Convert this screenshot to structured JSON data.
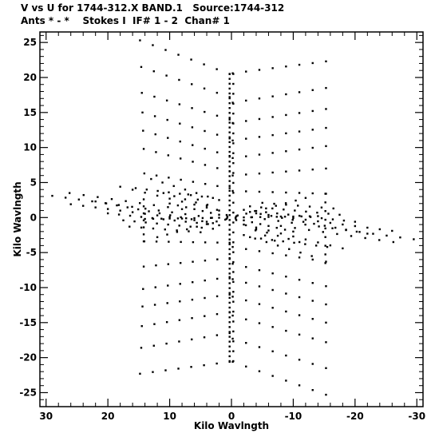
{
  "header": {
    "line1": "V vs U for 1744-312.X BAND.1   Source:1744-312",
    "line2": "Ants * - *    Stokes I  IF# 1 - 2  Chan# 1"
  },
  "chart_data": {
    "type": "scatter",
    "title": "V vs U for 1744-312.X BAND.1   Source:1744-312",
    "subtitle": "Ants * - *    Stokes I  IF# 1 - 2  Chan# 1",
    "xlabel": "Kilo Wavlngth",
    "ylabel": "Kilo Wavlngth",
    "xlim": [
      31,
      -31
    ],
    "ylim": [
      -27,
      26.5
    ],
    "x_reversed": true,
    "grid": false,
    "xticks": [
      30,
      20,
      10,
      0,
      -10,
      -20,
      -30
    ],
    "yticks": [
      25,
      20,
      15,
      10,
      5,
      0,
      -5,
      -10,
      -15,
      -20,
      -25
    ],
    "xtick_labels": [
      "30",
      "20",
      "10",
      "0",
      "-10",
      "-20",
      "-30"
    ],
    "ytick_labels": [
      "25",
      "20",
      "15",
      "10",
      "5",
      "0",
      "-5",
      "-10",
      "-15",
      "-20",
      "-25"
    ],
    "point_color": "#000000",
    "tracks": [
      {
        "from": [
          14.8,
          25.3
        ],
        "to": [
          0.3,
          20.5
        ],
        "n": 8
      },
      {
        "from": [
          14.6,
          21.5
        ],
        "to": [
          0.3,
          17.2
        ],
        "n": 8
      },
      {
        "from": [
          14.5,
          17.8
        ],
        "to": [
          0.3,
          14.0
        ],
        "n": 8
      },
      {
        "from": [
          14.4,
          15.0
        ],
        "to": [
          0.3,
          11.3
        ],
        "n": 8
      },
      {
        "from": [
          14.3,
          12.4
        ],
        "to": [
          0.3,
          8.8
        ],
        "n": 8
      },
      {
        "from": [
          14.2,
          9.8
        ],
        "to": [
          0.3,
          6.6
        ],
        "n": 8
      },
      {
        "from": [
          14.1,
          6.3
        ],
        "to": [
          0.3,
          4.2
        ],
        "n": 8
      },
      {
        "from": [
          -0.2,
          20.6
        ],
        "to": [
          -15.3,
          22.3
        ],
        "n": 8
      },
      {
        "from": [
          -0.2,
          16.4
        ],
        "to": [
          -15.3,
          18.5
        ],
        "n": 8
      },
      {
        "from": [
          -0.2,
          13.5
        ],
        "to": [
          -15.3,
          15.5
        ],
        "n": 8
      },
      {
        "from": [
          -0.2,
          11.0
        ],
        "to": [
          -15.3,
          12.8
        ],
        "n": 8
      },
      {
        "from": [
          -0.2,
          8.5
        ],
        "to": [
          -15.3,
          10.2
        ],
        "n": 8
      },
      {
        "from": [
          -0.2,
          6.0
        ],
        "to": [
          -15.3,
          7.0
        ],
        "n": 8
      },
      {
        "from": [
          -0.2,
          3.8
        ],
        "to": [
          -15.3,
          3.4
        ],
        "n": 8
      },
      {
        "from": [
          14.8,
          -22.3
        ],
        "to": [
          0.3,
          -20.6
        ],
        "n": 8
      },
      {
        "from": [
          14.6,
          -18.6
        ],
        "to": [
          0.3,
          -16.5
        ],
        "n": 8
      },
      {
        "from": [
          14.5,
          -15.5
        ],
        "to": [
          0.3,
          -13.5
        ],
        "n": 8
      },
      {
        "from": [
          14.4,
          -12.7
        ],
        "to": [
          0.3,
          -11.0
        ],
        "n": 8
      },
      {
        "from": [
          14.3,
          -10.2
        ],
        "to": [
          0.3,
          -8.5
        ],
        "n": 8
      },
      {
        "from": [
          14.2,
          -7.0
        ],
        "to": [
          0.3,
          -5.8
        ],
        "n": 8
      },
      {
        "from": [
          14.1,
          -3.4
        ],
        "to": [
          0.3,
          -3.6
        ],
        "n": 8
      },
      {
        "from": [
          -0.2,
          -20.6
        ],
        "to": [
          -15.3,
          -25.3
        ],
        "n": 8
      },
      {
        "from": [
          -0.2,
          -17.3
        ],
        "to": [
          -15.3,
          -21.5
        ],
        "n": 8
      },
      {
        "from": [
          -0.2,
          -14.0
        ],
        "to": [
          -15.3,
          -17.8
        ],
        "n": 8
      },
      {
        "from": [
          -0.2,
          -11.3
        ],
        "to": [
          -15.3,
          -15.0
        ],
        "n": 8
      },
      {
        "from": [
          -0.2,
          -8.8
        ],
        "to": [
          -15.3,
          -12.4
        ],
        "n": 8
      },
      {
        "from": [
          -0.2,
          -6.6
        ],
        "to": [
          -15.3,
          -9.8
        ],
        "n": 8
      },
      {
        "from": [
          -0.2,
          -4.2
        ],
        "to": [
          -15.3,
          -6.3
        ],
        "n": 8
      },
      {
        "from": [
          0.3,
          20.5
        ],
        "to": [
          0.3,
          -20.5
        ],
        "n": 60
      },
      {
        "from": [
          -0.3,
          20.5
        ],
        "to": [
          -0.3,
          -20.5
        ],
        "n": 30
      },
      {
        "from": [
          29.0,
          3.1
        ],
        "to": [
          1.0,
          -0.3
        ],
        "n": 14
      },
      {
        "from": [
          26.2,
          3.5
        ],
        "to": [
          8.0,
          1.2
        ],
        "n": 9
      },
      {
        "from": [
          26.0,
          1.9
        ],
        "to": [
          4.0,
          -0.6
        ],
        "n": 12
      },
      {
        "from": [
          22.0,
          2.3
        ],
        "to": [
          3.0,
          -0.8
        ],
        "n": 12
      },
      {
        "from": [
          20.0,
          0.6
        ],
        "to": [
          2.0,
          -1.1
        ],
        "n": 11
      },
      {
        "from": [
          18.0,
          4.4
        ],
        "to": [
          2.0,
          1.0
        ],
        "n": 9
      },
      {
        "from": [
          17.5,
          -0.4
        ],
        "to": [
          3.0,
          -1.6
        ],
        "n": 9
      },
      {
        "from": [
          16.5,
          -1.3
        ],
        "to": [
          5.0,
          -2.1
        ],
        "n": 7
      },
      {
        "from": [
          15.5,
          4.2
        ],
        "to": [
          3.0,
          2.8
        ],
        "n": 8
      },
      {
        "from": [
          13.0,
          5.5
        ],
        "to": [
          2.0,
          2.5
        ],
        "n": 7
      },
      {
        "from": [
          11.0,
          3.5
        ],
        "to": [
          4.0,
          1.7
        ],
        "n": 5
      },
      {
        "from": [
          -1.0,
          0.3
        ],
        "to": [
          -29.5,
          -3.1
        ],
        "n": 14
      },
      {
        "from": [
          -8.0,
          -1.2
        ],
        "to": [
          -26.2,
          -3.5
        ],
        "n": 9
      },
      {
        "from": [
          -4.0,
          0.6
        ],
        "to": [
          -26.0,
          -1.9
        ],
        "n": 12
      },
      {
        "from": [
          -3.0,
          0.8
        ],
        "to": [
          -22.0,
          -2.3
        ],
        "n": 12
      },
      {
        "from": [
          -2.0,
          1.1
        ],
        "to": [
          -20.0,
          -0.6
        ],
        "n": 11
      },
      {
        "from": [
          -2.0,
          -1.0
        ],
        "to": [
          -18.0,
          -4.4
        ],
        "n": 9
      },
      {
        "from": [
          -3.0,
          1.6
        ],
        "to": [
          -17.5,
          0.4
        ],
        "n": 9
      },
      {
        "from": [
          -5.0,
          2.1
        ],
        "to": [
          -16.5,
          1.3
        ],
        "n": 7
      },
      {
        "from": [
          -3.0,
          -2.8
        ],
        "to": [
          -15.5,
          -4.2
        ],
        "n": 8
      },
      {
        "from": [
          -2.0,
          -2.5
        ],
        "to": [
          -13.0,
          -5.5
        ],
        "n": 7
      },
      {
        "from": [
          -4.0,
          -1.7
        ],
        "to": [
          -11.0,
          -3.5
        ],
        "n": 5
      },
      {
        "from": [
          14.0,
          -0.2
        ],
        "to": [
          -14.0,
          0.2
        ],
        "n": 22
      },
      {
        "from": [
          10.0,
          2.0
        ],
        "to": [
          -10.0,
          -2.0
        ],
        "n": 16
      },
      {
        "from": [
          12.0,
          -2.8
        ],
        "to": [
          -12.0,
          2.8
        ],
        "n": 16
      },
      {
        "from": [
          7.0,
          3.3
        ],
        "to": [
          -7.0,
          -3.3
        ],
        "n": 10
      },
      {
        "from": [
          14.2,
          2.6
        ],
        "to": [
          14.2,
          -3.4
        ],
        "n": 7
      },
      {
        "from": [
          -15.2,
          3.4
        ],
        "to": [
          -15.2,
          -6.5
        ],
        "n": 9
      }
    ]
  }
}
